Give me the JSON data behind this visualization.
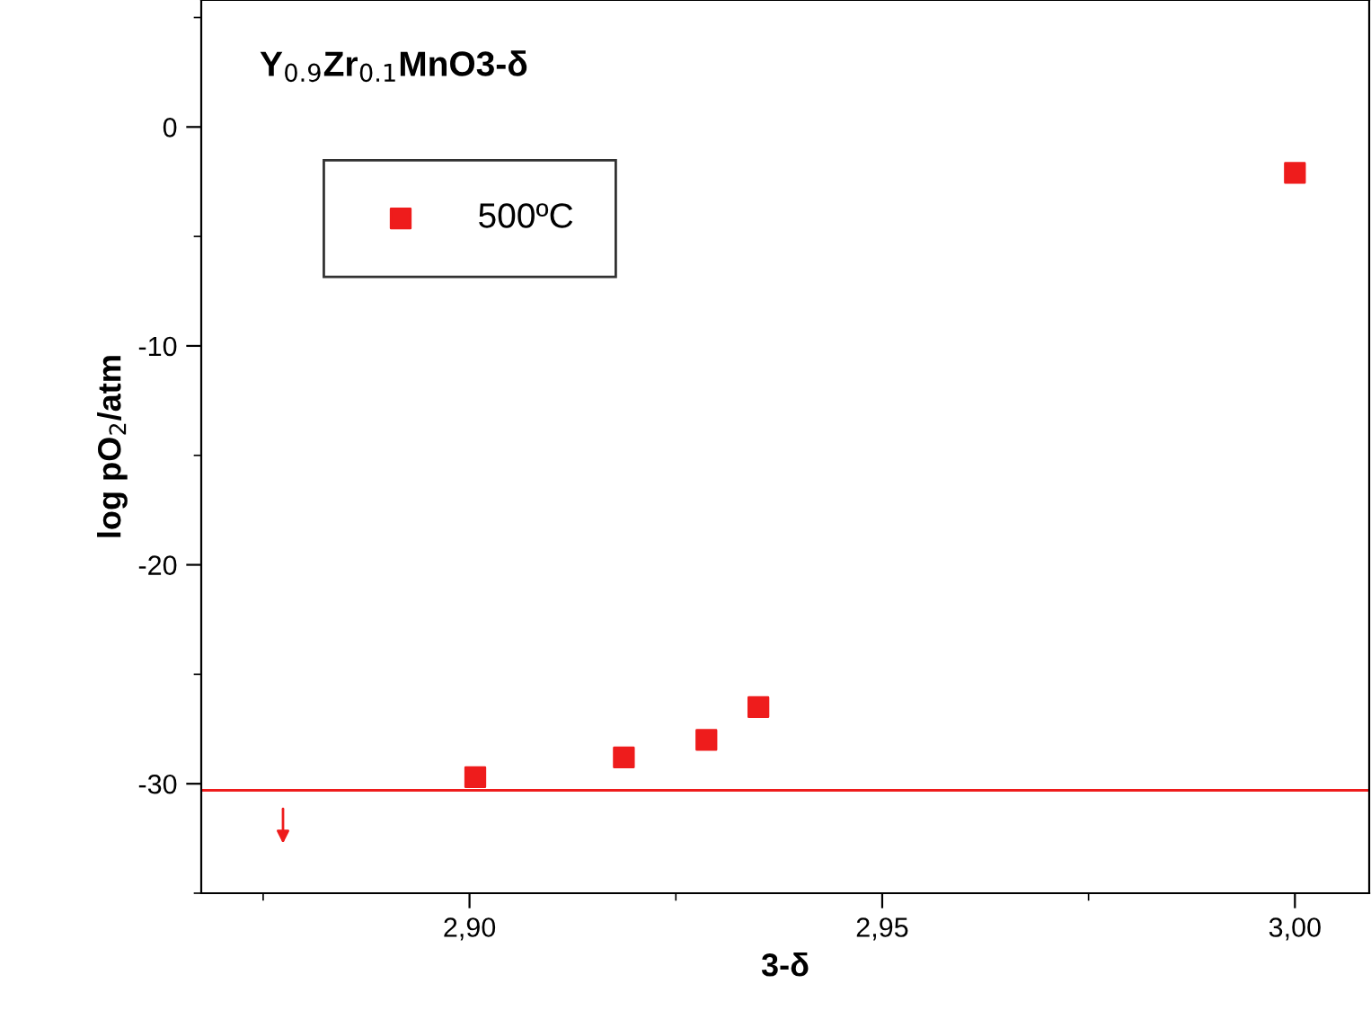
{
  "chart_data": {
    "type": "scatter",
    "title": "Y$_{0.9}$Zr$_{0.1}$MnO3-δ",
    "xlabel": "3-δ",
    "ylabel": "log pO$_{2}$/atm",
    "x": [
      2.9007,
      2.9187,
      2.9287,
      2.935,
      3.0
    ],
    "series": [
      {
        "name": "500ºC",
        "color": "#ee1c1c",
        "values": [
          -29.7,
          -28.8,
          -28.0,
          -26.5,
          -2.1
        ]
      }
    ],
    "xlim": [
      2.8675,
      3.009
    ],
    "ylim": [
      -35,
      5.8
    ],
    "xticks": [
      {
        "value": 2.875,
        "label": null
      },
      {
        "value": 2.9,
        "label": "2,90"
      },
      {
        "value": 2.925,
        "label": null
      },
      {
        "value": 2.95,
        "label": "2,95"
      },
      {
        "value": 2.975,
        "label": null
      },
      {
        "value": 3.0,
        "label": "3,00"
      }
    ],
    "yticks": [
      {
        "value": -35,
        "label": null
      },
      -30,
      {
        "value": -25,
        "label": null
      },
      -20,
      {
        "value": -15,
        "label": null
      },
      -10,
      {
        "value": -5,
        "label": null
      },
      0,
      {
        "value": 5,
        "label": null
      }
    ],
    "ref_lines": [
      {
        "axis": "y",
        "value": -30.3,
        "color": "#ee1c1c",
        "line_style": "solid"
      }
    ],
    "marker": "square",
    "legend": "top left",
    "grid": false
  }
}
